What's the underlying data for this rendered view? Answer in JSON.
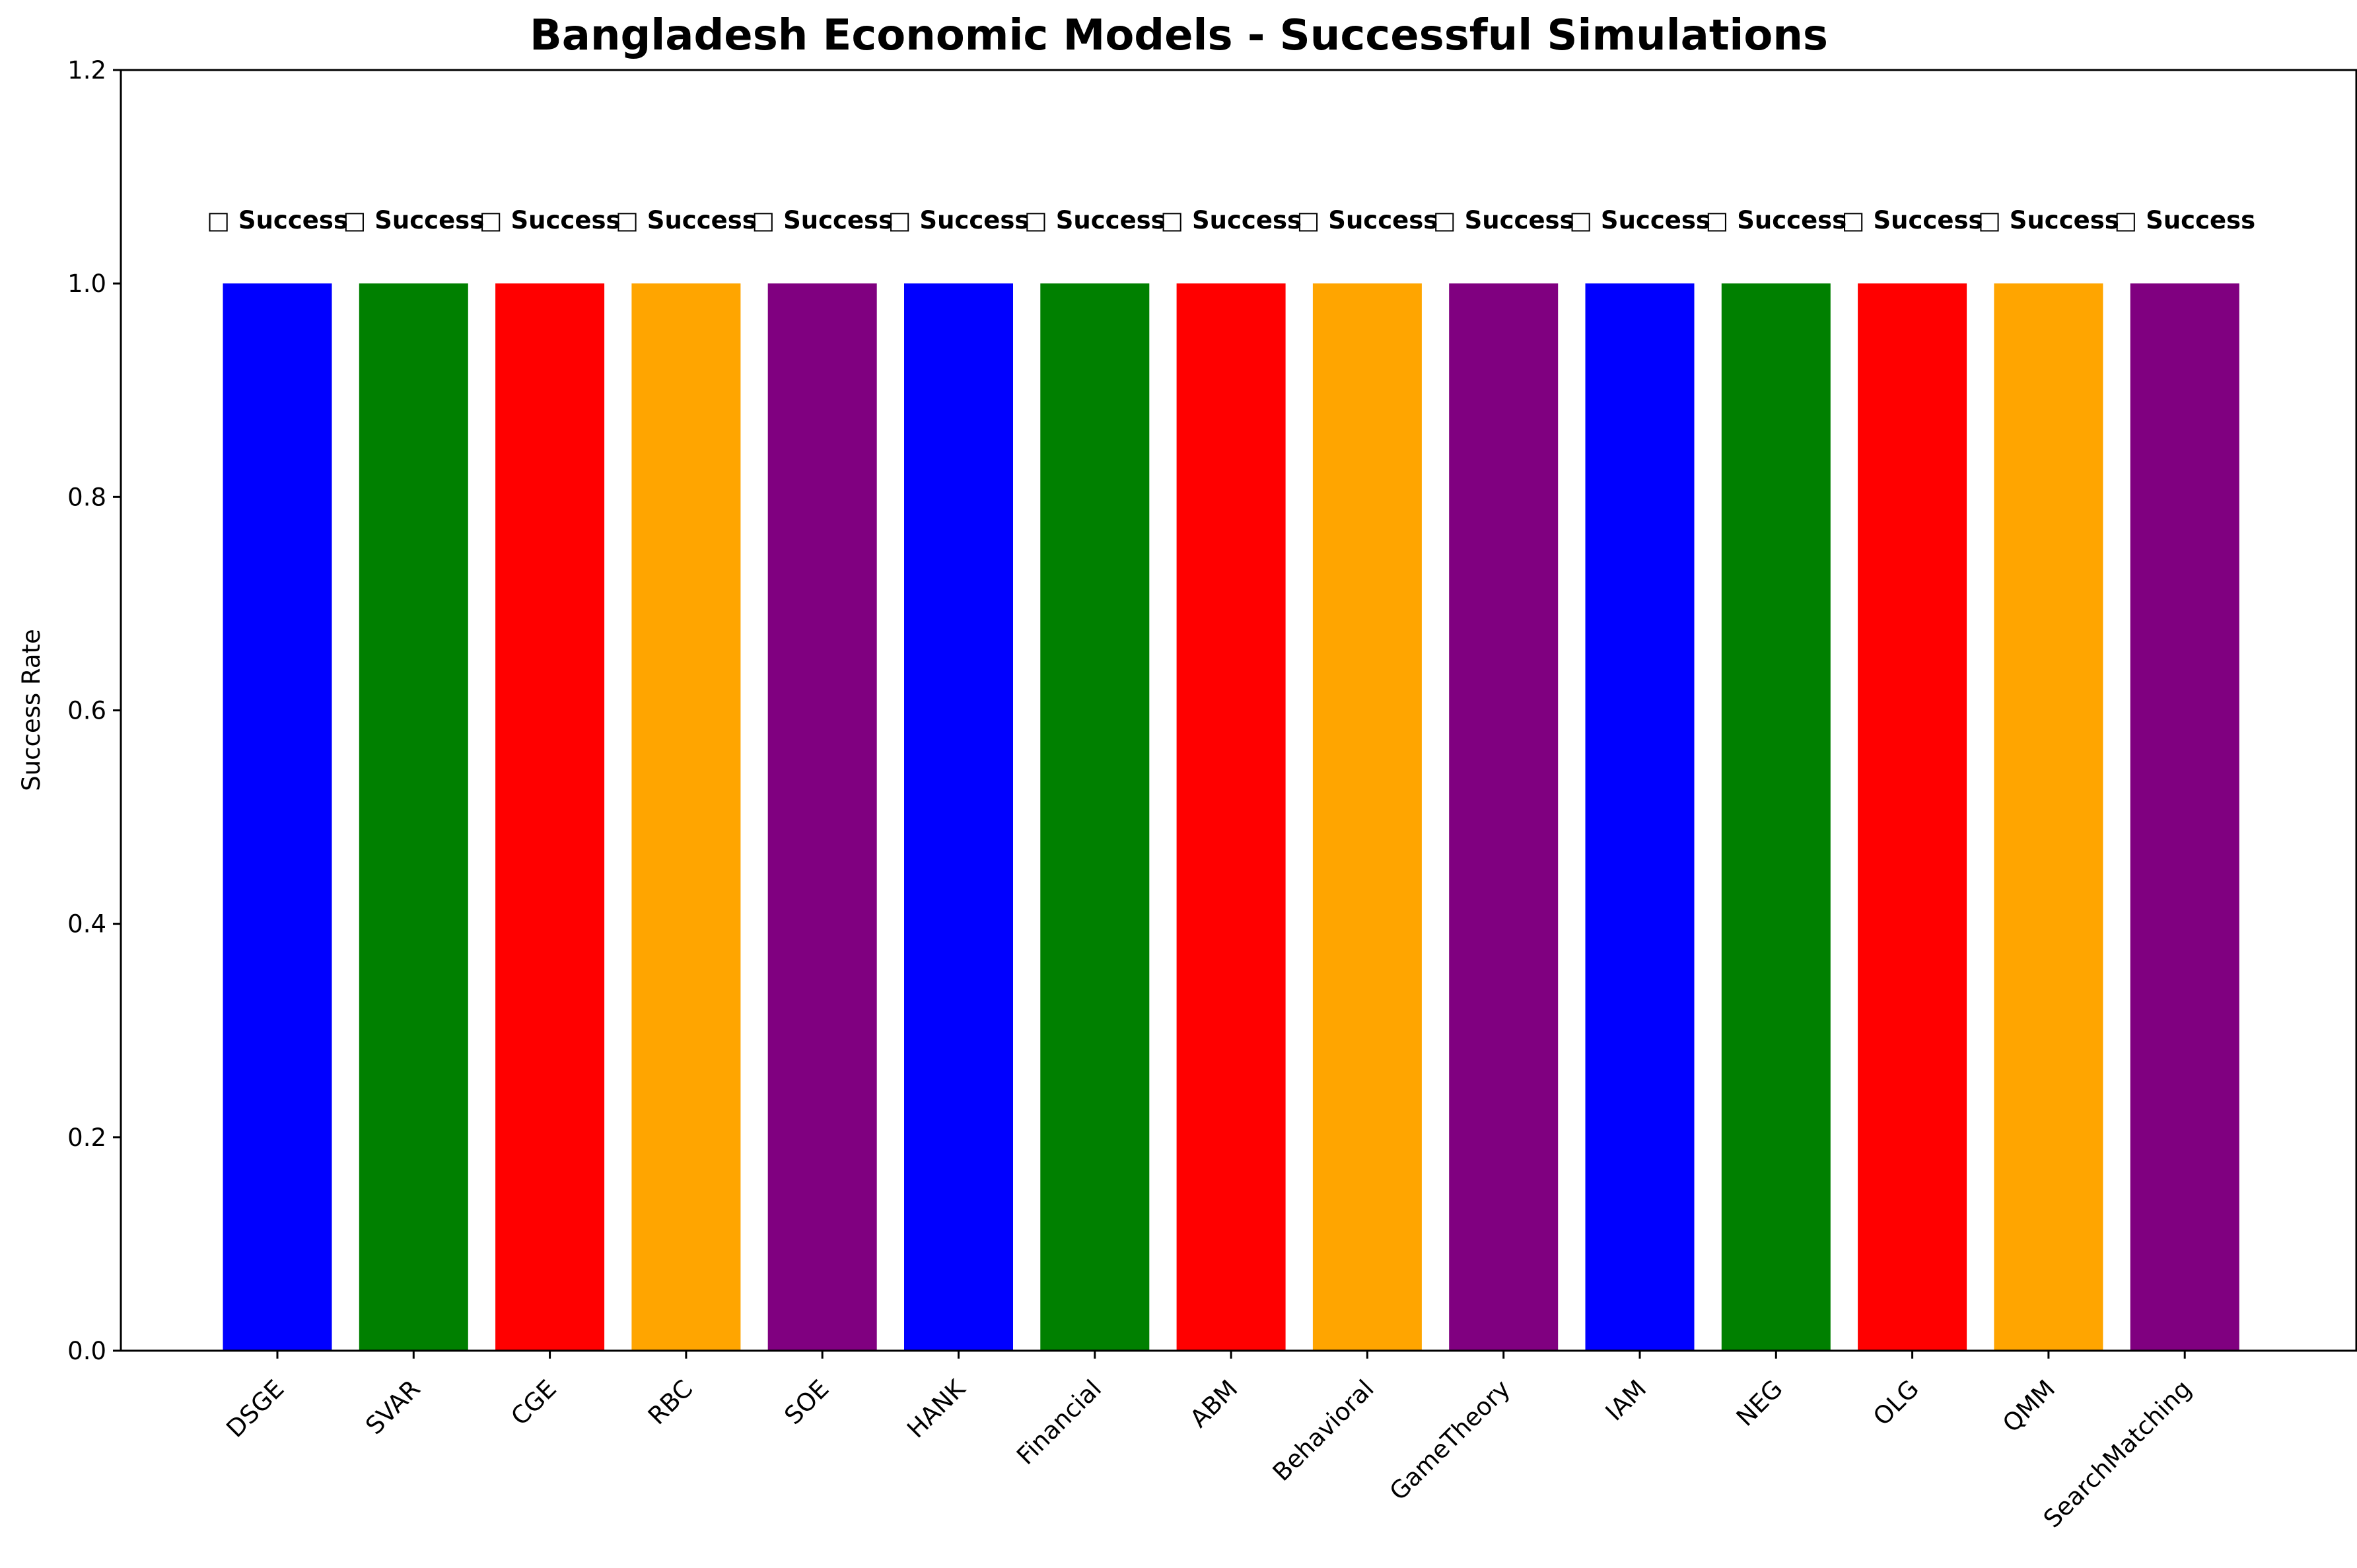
{
  "chart_data": {
    "type": "bar",
    "title": "Bangladesh Economic Models - Successful Simulations",
    "xlabel": "",
    "ylabel": "Success Rate",
    "ylim": [
      0,
      1.2
    ],
    "yticks": [
      "0.0",
      "0.2",
      "0.4",
      "0.6",
      "0.8",
      "1.0",
      "1.2"
    ],
    "grid": false,
    "legend": "none",
    "categories": [
      "DSGE",
      "SVAR",
      "CGE",
      "RBC",
      "SOE",
      "HANK",
      "Financial",
      "ABM",
      "Behavioral",
      "GameTheory",
      "IAM",
      "NEG",
      "OLG",
      "QMM",
      "SearchMatching"
    ],
    "values": [
      1,
      1,
      1,
      1,
      1,
      1,
      1,
      1,
      1,
      1,
      1,
      1,
      1,
      1,
      1
    ],
    "bar_labels": [
      "□ Success",
      "□ Success",
      "□ Success",
      "□ Success",
      "□ Success",
      "□ Success",
      "□ Success",
      "□ Success",
      "□ Success",
      "□ Success",
      "□ Success",
      "□ Success",
      "□ Success",
      "□ Success",
      "□ Success"
    ],
    "colors": [
      "#0000ff",
      "#008000",
      "#ff0000",
      "#ffa500",
      "#800080",
      "#0000ff",
      "#008000",
      "#ff0000",
      "#ffa500",
      "#800080",
      "#0000ff",
      "#008000",
      "#ff0000",
      "#ffa500",
      "#800080"
    ]
  }
}
